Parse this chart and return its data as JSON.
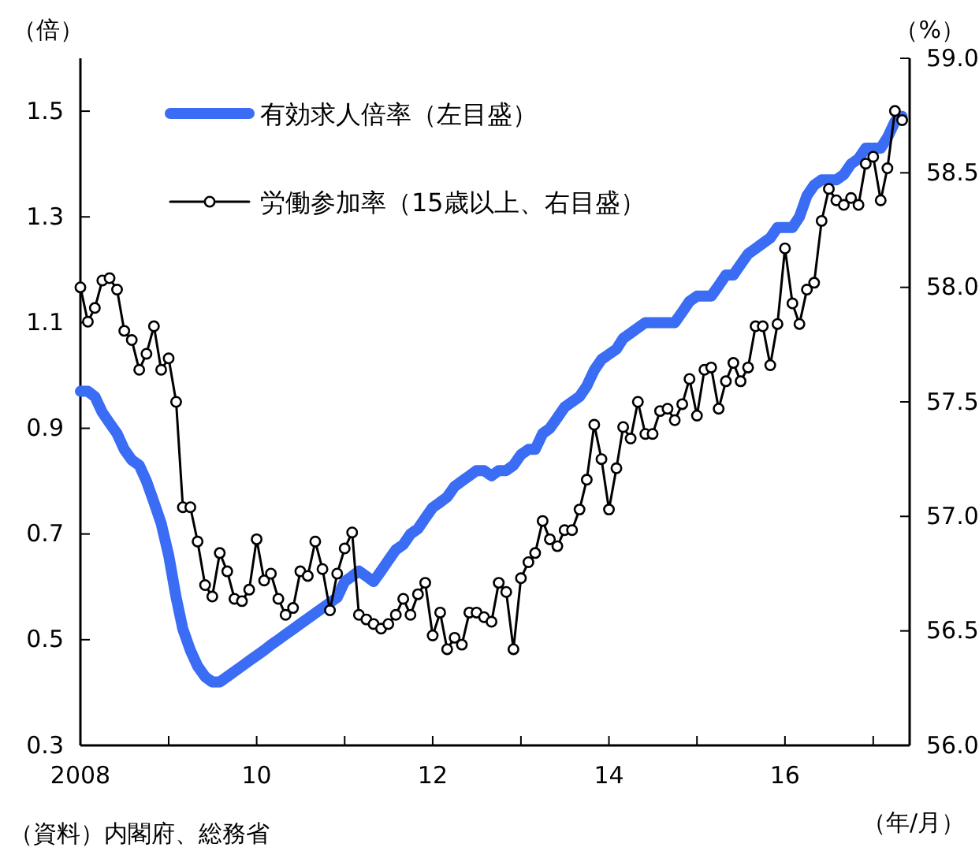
{
  "chart_data": {
    "type": "line",
    "ylabel": "（倍）",
    "y2label": "（%）",
    "xlabel": "（年/月）",
    "annotations": [
      "（資料）内閣府、総務省"
    ],
    "x": [
      "2008-01",
      "2008-02",
      "2008-03",
      "2008-04",
      "2008-05",
      "2008-06",
      "2008-07",
      "2008-08",
      "2008-09",
      "2008-10",
      "2008-11",
      "2008-12",
      "2009-01",
      "2009-02",
      "2009-03",
      "2009-04",
      "2009-05",
      "2009-06",
      "2009-07",
      "2009-08",
      "2009-09",
      "2009-10",
      "2009-11",
      "2009-12",
      "2010-01",
      "2010-02",
      "2010-03",
      "2010-04",
      "2010-05",
      "2010-06",
      "2010-07",
      "2010-08",
      "2010-09",
      "2010-10",
      "2010-11",
      "2010-12",
      "2011-01",
      "2011-02",
      "2011-03",
      "2011-04",
      "2011-05",
      "2011-06",
      "2011-07",
      "2011-08",
      "2011-09",
      "2011-10",
      "2011-11",
      "2011-12",
      "2012-01",
      "2012-02",
      "2012-03",
      "2012-04",
      "2012-05",
      "2012-06",
      "2012-07",
      "2012-08",
      "2012-09",
      "2012-10",
      "2012-11",
      "2012-12",
      "2013-01",
      "2013-02",
      "2013-03",
      "2013-04",
      "2013-05",
      "2013-06",
      "2013-07",
      "2013-08",
      "2013-09",
      "2013-10",
      "2013-11",
      "2013-12",
      "2014-01",
      "2014-02",
      "2014-03",
      "2014-04",
      "2014-05",
      "2014-06",
      "2014-07",
      "2014-08",
      "2014-09",
      "2014-10",
      "2014-11",
      "2014-12",
      "2015-01",
      "2015-02",
      "2015-03",
      "2015-04",
      "2015-05",
      "2015-06",
      "2015-07",
      "2015-08",
      "2015-09",
      "2015-10",
      "2015-11",
      "2015-12",
      "2016-01",
      "2016-02",
      "2016-03",
      "2016-04",
      "2016-05",
      "2016-06",
      "2016-07",
      "2016-08",
      "2016-09",
      "2016-10",
      "2016-11",
      "2016-12",
      "2017-01",
      "2017-02",
      "2017-03",
      "2017-04",
      "2017-05"
    ],
    "xlim": [
      "2008-01",
      "2017-06"
    ],
    "xticks": [
      {
        "value": "2008-01",
        "label": "2008"
      },
      {
        "value": "2009-01",
        "label": null
      },
      {
        "value": "2010-01",
        "label": "10"
      },
      {
        "value": "2011-01",
        "label": null
      },
      {
        "value": "2012-01",
        "label": "12"
      },
      {
        "value": "2013-01",
        "label": null
      },
      {
        "value": "2014-01",
        "label": "14"
      },
      {
        "value": "2015-01",
        "label": null
      },
      {
        "value": "2016-01",
        "label": "16"
      },
      {
        "value": "2017-01",
        "label": null
      }
    ],
    "ylim": [
      0.3,
      1.6
    ],
    "yticks": [
      0.3,
      0.5,
      0.7,
      0.9,
      1.1,
      1.3,
      1.5
    ],
    "y2lim": [
      56,
      59
    ],
    "y2ticks": [
      {
        "value": 56,
        "label": "56.0"
      },
      {
        "value": 56.5,
        "label": "56.5"
      },
      {
        "value": 57,
        "label": "57.0"
      },
      {
        "value": 57.5,
        "label": "57.5"
      },
      {
        "value": 58,
        "label": "58.0"
      },
      {
        "value": 58.5,
        "label": "58.5"
      },
      {
        "value": 59,
        "label": "59.0"
      }
    ],
    "grid": false,
    "legend": "top left",
    "series": [
      {
        "name": "有効求人倍率（左目盛）",
        "color": "#3a6cf4",
        "marker": "none",
        "values": [
          0.97,
          0.97,
          0.96,
          0.93,
          0.91,
          0.89,
          0.86,
          0.84,
          0.83,
          0.8,
          0.76,
          0.72,
          0.66,
          0.58,
          0.52,
          0.48,
          0.45,
          0.43,
          0.42,
          0.42,
          0.43,
          0.44,
          0.45,
          0.46,
          0.47,
          0.48,
          0.49,
          0.5,
          0.51,
          0.52,
          0.53,
          0.54,
          0.55,
          0.56,
          0.57,
          0.58,
          0.61,
          0.62,
          0.63,
          0.62,
          0.61,
          0.63,
          0.65,
          0.67,
          0.68,
          0.7,
          0.71,
          0.73,
          0.75,
          0.76,
          0.77,
          0.79,
          0.8,
          0.81,
          0.82,
          0.82,
          0.81,
          0.82,
          0.82,
          0.83,
          0.85,
          0.86,
          0.86,
          0.89,
          0.9,
          0.92,
          0.94,
          0.95,
          0.96,
          0.98,
          1.01,
          1.03,
          1.04,
          1.05,
          1.07,
          1.08,
          1.09,
          1.1,
          1.1,
          1.1,
          1.1,
          1.1,
          1.12,
          1.14,
          1.15,
          1.15,
          1.15,
          1.17,
          1.19,
          1.19,
          1.21,
          1.23,
          1.24,
          1.25,
          1.26,
          1.28,
          1.28,
          1.28,
          1.3,
          1.34,
          1.36,
          1.37,
          1.37,
          1.37,
          1.38,
          1.4,
          1.41,
          1.43,
          1.43,
          1.43,
          1.45,
          1.48,
          1.49
        ]
      },
      {
        "name": "労働参加率（15歳以上、右目盛）",
        "color": "#000000",
        "marker": "circle",
        "axis": "y2",
        "values": [
          58.0,
          57.85,
          57.91,
          58.03,
          58.04,
          57.99,
          57.81,
          57.77,
          57.64,
          57.71,
          57.83,
          57.64,
          57.69,
          57.5,
          57.04,
          57.04,
          56.89,
          56.7,
          56.65,
          56.84,
          56.76,
          56.64,
          56.63,
          56.68,
          56.9,
          56.72,
          56.75,
          56.64,
          56.57,
          56.6,
          56.76,
          56.74,
          56.89,
          56.77,
          56.59,
          56.75,
          56.86,
          56.93,
          56.57,
          56.55,
          56.53,
          56.51,
          56.53,
          56.57,
          56.64,
          56.57,
          56.66,
          56.71,
          56.48,
          56.58,
          56.42,
          56.47,
          56.44,
          56.58,
          56.58,
          56.56,
          56.54,
          56.71,
          56.67,
          56.42,
          56.73,
          56.8,
          56.84,
          56.98,
          56.9,
          56.87,
          56.94,
          56.94,
          57.03,
          57.16,
          57.4,
          57.25,
          57.03,
          57.21,
          57.39,
          57.34,
          57.5,
          57.36,
          57.36,
          57.46,
          57.47,
          57.42,
          57.49,
          57.6,
          57.44,
          57.64,
          57.65,
          57.47,
          57.59,
          57.67,
          57.59,
          57.65,
          57.83,
          57.83,
          57.66,
          57.84,
          58.17,
          57.93,
          57.84,
          57.99,
          58.02,
          58.29,
          58.43,
          58.38,
          58.36,
          58.39,
          58.36,
          58.54,
          58.57,
          58.38,
          58.52,
          58.77,
          58.73
        ]
      }
    ]
  }
}
